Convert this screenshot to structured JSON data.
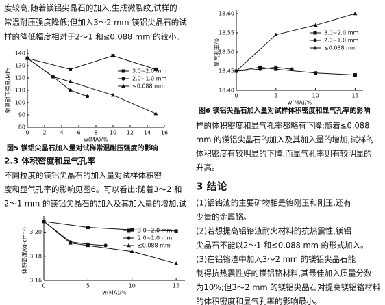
{
  "text_top": [
    "度较高;随着镁铝尖晶石的加入,生成微裂纹,试样的",
    "常温耐压强度降低;但加入3～2 mm 镁铝尖晶石的试",
    "样的降低幅度相对于2～1 和≤0.088 mm 的较小。"
  ],
  "section_2_3": "2.3  体积密度和显气孔率",
  "para_2_3": [
    "不同粒度的镁铝尖晶石的加入量对试样体积密",
    "度和显气孔率的影响见图6。可以看出:随着3～2 和",
    "2～1 mm 的镁铝尖晶石的加入及其加入量的增加,试"
  ],
  "para_right": [
    "样的体积密度和显气孔率都略有下降;随着≤0.088",
    "mm 的镁铝尖晶石的加入及其加入量的增加,试样的",
    "体积密度有较明显的下降,而显气孔率则有较明显的",
    "升高。"
  ],
  "section_3": "3  结论",
  "conclusions": [
    "(1)铝铬渣的主要矿物相是铬刚玉和刚玉,还有",
    "少量的金属铬。",
    "(2)若想提高铝铬渣耐火材料的抗热震性,镁铝",
    "尖晶石不能以2～1 和≤0.088 mm 的形式加入。",
    "(3)在铝铬渣中加入3～2 mm 的镁铝尖晶石能",
    "制得抗热震性好的镁铝铬材料,其最佳加入质量分数",
    "为10%;但3～2 mm 的镁铝尖晶石对提高镁铝铬材料",
    "的体积密度和显气孔率的影响最小。"
  ],
  "chart_data": [
    {
      "type": "line",
      "caption": "图5  镁铝尖晶石加入量对试样常温耐压强度的影响",
      "ylabel": "常温耐压强度/MPa",
      "xlabel": "w(MA)/%",
      "xlim": [
        0,
        16
      ],
      "xticks": [
        0,
        2,
        4,
        6,
        8,
        10,
        12,
        14,
        16
      ],
      "ylim": [
        80,
        140
      ],
      "yticks": [
        80,
        90,
        100,
        110,
        120,
        130,
        140
      ],
      "series": [
        {
          "name": "3.0~2.0 mm",
          "marker": "square",
          "color": "#111111",
          "x": [
            0,
            5,
            10,
            15
          ],
          "values": [
            136,
            127,
            138,
            127
          ]
        },
        {
          "name": "2.0~1.0 mm",
          "marker": "circle",
          "color": "#111111",
          "x": [
            0,
            3,
            5,
            7
          ],
          "values": [
            136,
            121,
            110,
            105
          ]
        },
        {
          "name": "≤0.088 mm",
          "marker": "triangle",
          "color": "#111111",
          "x": [
            0,
            3,
            5,
            10,
            15
          ],
          "values": [
            136,
            121,
            117,
            106,
            91
          ]
        }
      ]
    },
    {
      "type": "line",
      "ylabel": "显气孔率/%",
      "xlabel": "w(MA)/%",
      "xlim": [
        0,
        16
      ],
      "xticks": [
        0,
        5,
        10,
        15
      ],
      "ylim": [
        18.4,
        18.6
      ],
      "yticks": [
        {
          "value": 18.4,
          "label": "18.40"
        },
        18.45,
        {
          "value": 18.5,
          "label": "18.50"
        },
        18.55,
        {
          "value": 18.6,
          "label": "18.60"
        }
      ],
      "series": [
        {
          "name": "3.0~2.0 mm",
          "marker": "square",
          "color": "#111111",
          "x": [
            0,
            3,
            5,
            10,
            15
          ],
          "values": [
            18.45,
            18.46,
            18.455,
            18.445,
            18.44
          ]
        },
        {
          "name": "2.0~1.0 mm",
          "marker": "circle",
          "color": "#111111",
          "x": [
            0,
            3,
            5,
            7
          ],
          "values": [
            18.45,
            18.455,
            18.46,
            18.455
          ]
        },
        {
          "name": "≤0.088 mm",
          "marker": "triangle",
          "color": "#111111",
          "x": [
            0,
            5,
            10,
            15
          ],
          "values": [
            18.45,
            18.545,
            18.57,
            18.6
          ]
        }
      ]
    },
    {
      "type": "line",
      "caption": "图6  镁铝尖晶石加入量对试样体积密度和显气孔率的影响",
      "ylabel": "体积密度/(g·cm⁻³)",
      "xlabel": "w(MA)/%",
      "xlim": [
        0,
        16
      ],
      "xticks": [
        0,
        5,
        10,
        15
      ],
      "ylim": [
        3.16,
        3.21
      ],
      "yticks": [
        3.16,
        3.18,
        {
          "value": 3.2,
          "label": "3.20"
        }
      ],
      "series": [
        {
          "name": "3.0~2.0 mm",
          "marker": "square",
          "color": "#111111",
          "x": [
            0,
            5,
            10,
            15
          ],
          "values": [
            3.209,
            3.204,
            3.202,
            3.201
          ]
        },
        {
          "name": "2.0~1.0 mm",
          "marker": "circle",
          "color": "#111111",
          "x": [
            0,
            3,
            5,
            7
          ],
          "values": [
            3.209,
            3.192,
            3.19,
            3.189
          ]
        },
        {
          "name": "≤0.088 mm",
          "marker": "triangle",
          "color": "#111111",
          "x": [
            0,
            3,
            5,
            10,
            15
          ],
          "values": [
            3.209,
            3.191,
            3.189,
            3.184,
            3.174
          ]
        }
      ]
    }
  ]
}
